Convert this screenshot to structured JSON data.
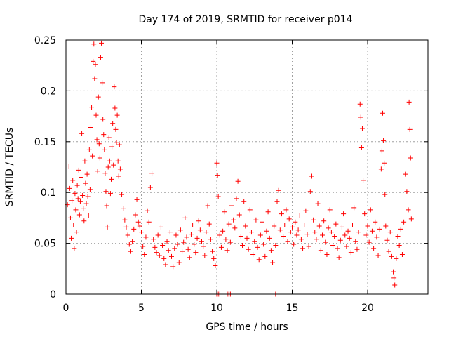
{
  "chart_data": {
    "type": "scatter",
    "title": "Day 174 of 2019, SRMTID for receiver p014",
    "xlabel": "GPS time / hours",
    "ylabel": "SRMTID / TECUs",
    "xlim": [
      0,
      24
    ],
    "ylim": [
      0,
      0.25
    ],
    "xticks": [
      0,
      5,
      10,
      15,
      20
    ],
    "xtick_labels": [
      "0",
      "5",
      "10",
      "15",
      "20"
    ],
    "yticks": [
      0,
      0.05,
      0.1,
      0.15,
      0.2,
      0.25
    ],
    "ytick_labels": [
      "0",
      "0.05",
      "0.1",
      "0.15",
      "0.2",
      "0.25"
    ],
    "grid": true,
    "marker": "+",
    "color": "#ff0000",
    "series": [
      {
        "name": "SRMTID",
        "points": [
          [
            0.1,
            0.088
          ],
          [
            0.2,
            0.126
          ],
          [
            0.25,
            0.104
          ],
          [
            0.3,
            0.075
          ],
          [
            0.35,
            0.055
          ],
          [
            0.4,
            0.092
          ],
          [
            0.45,
            0.112
          ],
          [
            0.5,
            0.068
          ],
          [
            0.55,
            0.045
          ],
          [
            0.6,
            0.099
          ],
          [
            0.65,
            0.083
          ],
          [
            0.7,
            0.061
          ],
          [
            0.75,
            0.107
          ],
          [
            0.8,
            0.094
          ],
          [
            0.85,
            0.122
          ],
          [
            0.9,
            0.078
          ],
          [
            0.95,
            0.091
          ],
          [
            1.0,
            0.115
          ],
          [
            1.05,
            0.158
          ],
          [
            1.1,
            0.097
          ],
          [
            1.15,
            0.084
          ],
          [
            1.2,
            0.072
          ],
          [
            1.25,
            0.131
          ],
          [
            1.3,
            0.109
          ],
          [
            1.35,
            0.089
          ],
          [
            1.4,
            0.118
          ],
          [
            1.45,
            0.096
          ],
          [
            1.5,
            0.077
          ],
          [
            1.55,
            0.142
          ],
          [
            1.6,
            0.103
          ],
          [
            1.65,
            0.164
          ],
          [
            1.7,
            0.184
          ],
          [
            1.75,
            0.136
          ],
          [
            1.8,
            0.229
          ],
          [
            1.85,
            0.246
          ],
          [
            1.9,
            0.212
          ],
          [
            1.95,
            0.226
          ],
          [
            2.0,
            0.176
          ],
          [
            2.05,
            0.152
          ],
          [
            2.1,
            0.121
          ],
          [
            2.15,
            0.194
          ],
          [
            2.2,
            0.148
          ],
          [
            2.25,
            0.134
          ],
          [
            2.3,
            0.233
          ],
          [
            2.35,
            0.247
          ],
          [
            2.4,
            0.208
          ],
          [
            2.45,
            0.172
          ],
          [
            2.5,
            0.157
          ],
          [
            2.55,
            0.142
          ],
          [
            2.6,
            0.119
          ],
          [
            2.65,
            0.101
          ],
          [
            2.7,
            0.087
          ],
          [
            2.75,
            0.066
          ],
          [
            2.8,
            0.125
          ],
          [
            2.85,
            0.154
          ],
          [
            2.9,
            0.131
          ],
          [
            2.95,
            0.099
          ],
          [
            3.0,
            0.113
          ],
          [
            3.05,
            0.145
          ],
          [
            3.1,
            0.168
          ],
          [
            3.15,
            0.127
          ],
          [
            3.2,
            0.204
          ],
          [
            3.25,
            0.183
          ],
          [
            3.3,
            0.162
          ],
          [
            3.35,
            0.149
          ],
          [
            3.4,
            0.176
          ],
          [
            3.45,
            0.131
          ],
          [
            3.5,
            0.116
          ],
          [
            3.55,
            0.147
          ],
          [
            3.6,
            0.123
          ],
          [
            3.7,
            0.098
          ],
          [
            3.8,
            0.084
          ],
          [
            3.9,
            0.073
          ],
          [
            4.0,
            0.066
          ],
          [
            4.1,
            0.058
          ],
          [
            4.2,
            0.049
          ],
          [
            4.3,
            0.042
          ],
          [
            4.4,
            0.052
          ],
          [
            4.5,
            0.064
          ],
          [
            4.6,
            0.078
          ],
          [
            4.7,
            0.093
          ],
          [
            4.8,
            0.071
          ],
          [
            4.9,
            0.067
          ],
          [
            5.0,
            0.061
          ],
          [
            5.1,
            0.047
          ],
          [
            5.2,
            0.039
          ],
          [
            5.3,
            0.056
          ],
          [
            5.4,
            0.082
          ],
          [
            5.5,
            0.071
          ],
          [
            5.6,
            0.105
          ],
          [
            5.7,
            0.119
          ],
          [
            5.8,
            0.054
          ],
          [
            5.9,
            0.046
          ],
          [
            6.0,
            0.041
          ],
          [
            6.1,
            0.058
          ],
          [
            6.2,
            0.038
          ],
          [
            6.3,
            0.066
          ],
          [
            6.4,
            0.048
          ],
          [
            6.5,
            0.035
          ],
          [
            6.6,
            0.029
          ],
          [
            6.7,
            0.052
          ],
          [
            6.8,
            0.043
          ],
          [
            6.9,
            0.061
          ],
          [
            7.0,
            0.037
          ],
          [
            7.1,
            0.027
          ],
          [
            7.2,
            0.045
          ],
          [
            7.3,
            0.058
          ],
          [
            7.4,
            0.049
          ],
          [
            7.5,
            0.031
          ],
          [
            7.6,
            0.063
          ],
          [
            7.7,
            0.042
          ],
          [
            7.8,
            0.051
          ],
          [
            7.9,
            0.075
          ],
          [
            8.0,
            0.056
          ],
          [
            8.1,
            0.044
          ],
          [
            8.2,
            0.036
          ],
          [
            8.3,
            0.059
          ],
          [
            8.4,
            0.068
          ],
          [
            8.5,
            0.049
          ],
          [
            8.6,
            0.041
          ],
          [
            8.7,
            0.055
          ],
          [
            8.8,
            0.072
          ],
          [
            8.9,
            0.063
          ],
          [
            9.0,
            0.052
          ],
          [
            9.1,
            0.047
          ],
          [
            9.2,
            0.038
          ],
          [
            9.3,
            0.061
          ],
          [
            9.4,
            0.087
          ],
          [
            9.5,
            0.069
          ],
          [
            9.6,
            0.054
          ],
          [
            9.7,
            0.042
          ],
          [
            9.8,
            0.035
          ],
          [
            9.9,
            0.028
          ],
          [
            10.0,
            0.129
          ],
          [
            10.05,
            0.117
          ],
          [
            10.1,
            0.096
          ],
          [
            10.2,
            0.058
          ],
          [
            10.3,
            0.046
          ],
          [
            10.4,
            0.062
          ],
          [
            10.5,
            0.081
          ],
          [
            10.6,
            0.054
          ],
          [
            10.7,
            0.043
          ],
          [
            10.8,
            0.069
          ],
          [
            10.9,
            0.051
          ],
          [
            11.0,
            0.087
          ],
          [
            11.1,
            0.073
          ],
          [
            11.2,
            0.065
          ],
          [
            11.3,
            0.094
          ],
          [
            11.4,
            0.111
          ],
          [
            11.5,
            0.078
          ],
          [
            11.6,
            0.057
          ],
          [
            11.7,
            0.048
          ],
          [
            11.8,
            0.091
          ],
          [
            11.9,
            0.067
          ],
          [
            12.0,
            0.055
          ],
          [
            12.1,
            0.044
          ],
          [
            12.2,
            0.083
          ],
          [
            12.3,
            0.061
          ],
          [
            12.4,
            0.039
          ],
          [
            12.5,
            0.052
          ],
          [
            12.6,
            0.073
          ],
          [
            12.7,
            0.046
          ],
          [
            12.8,
            0.034
          ],
          [
            12.9,
            0.058
          ],
          [
            13.0,
            0.071
          ],
          [
            13.1,
            0.049
          ],
          [
            13.2,
            0.037
          ],
          [
            13.3,
            0.062
          ],
          [
            13.4,
            0.081
          ],
          [
            13.5,
            0.055
          ],
          [
            13.6,
            0.043
          ],
          [
            13.7,
            0.031
          ],
          [
            13.8,
            0.067
          ],
          [
            13.9,
            0.048
          ],
          [
            14.0,
            0.091
          ],
          [
            14.1,
            0.102
          ],
          [
            14.2,
            0.063
          ],
          [
            14.3,
            0.079
          ],
          [
            14.4,
            0.057
          ],
          [
            14.5,
            0.068
          ],
          [
            14.6,
            0.083
          ],
          [
            14.7,
            0.052
          ],
          [
            14.8,
            0.074
          ],
          [
            14.9,
            0.061
          ],
          [
            15.0,
            0.066
          ],
          [
            15.1,
            0.049
          ],
          [
            15.2,
            0.071
          ],
          [
            15.3,
            0.058
          ],
          [
            15.4,
            0.063
          ],
          [
            15.5,
            0.077
          ],
          [
            15.6,
            0.054
          ],
          [
            15.7,
            0.045
          ],
          [
            15.8,
            0.068
          ],
          [
            15.9,
            0.082
          ],
          [
            16.0,
            0.059
          ],
          [
            16.1,
            0.047
          ],
          [
            16.2,
            0.101
          ],
          [
            16.3,
            0.116
          ],
          [
            16.4,
            0.073
          ],
          [
            16.5,
            0.061
          ],
          [
            16.6,
            0.054
          ],
          [
            16.7,
            0.089
          ],
          [
            16.8,
            0.067
          ],
          [
            16.9,
            0.043
          ],
          [
            17.0,
            0.058
          ],
          [
            17.1,
            0.072
          ],
          [
            17.2,
            0.051
          ],
          [
            17.3,
            0.039
          ],
          [
            17.4,
            0.065
          ],
          [
            17.5,
            0.083
          ],
          [
            17.6,
            0.061
          ],
          [
            17.7,
            0.048
          ],
          [
            17.8,
            0.057
          ],
          [
            17.9,
            0.069
          ],
          [
            18.0,
            0.045
          ],
          [
            18.1,
            0.036
          ],
          [
            18.2,
            0.053
          ],
          [
            18.3,
            0.066
          ],
          [
            18.4,
            0.079
          ],
          [
            18.5,
            0.058
          ],
          [
            18.6,
            0.047
          ],
          [
            18.7,
            0.062
          ],
          [
            18.8,
            0.055
          ],
          [
            18.9,
            0.041
          ],
          [
            19.0,
            0.068
          ],
          [
            19.1,
            0.085
          ],
          [
            19.2,
            0.052
          ],
          [
            19.3,
            0.044
          ],
          [
            19.4,
            0.061
          ],
          [
            19.5,
            0.187
          ],
          [
            19.55,
            0.174
          ],
          [
            19.6,
            0.144
          ],
          [
            19.65,
            0.163
          ],
          [
            19.7,
            0.112
          ],
          [
            19.8,
            0.079
          ],
          [
            19.9,
            0.058
          ],
          [
            20.0,
            0.067
          ],
          [
            20.1,
            0.051
          ],
          [
            20.2,
            0.083
          ],
          [
            20.3,
            0.062
          ],
          [
            20.4,
            0.045
          ],
          [
            20.5,
            0.071
          ],
          [
            20.6,
            0.056
          ],
          [
            20.7,
            0.038
          ],
          [
            20.8,
            0.064
          ],
          [
            20.9,
            0.123
          ],
          [
            20.95,
            0.141
          ],
          [
            21.0,
            0.178
          ],
          [
            21.05,
            0.151
          ],
          [
            21.1,
            0.129
          ],
          [
            21.15,
            0.098
          ],
          [
            21.2,
            0.067
          ],
          [
            21.3,
            0.053
          ],
          [
            21.4,
            0.042
          ],
          [
            21.5,
            0.061
          ],
          [
            21.6,
            0.037
          ],
          [
            21.7,
            0.022
          ],
          [
            21.75,
            0.016
          ],
          [
            21.8,
            0.009
          ],
          [
            21.9,
            0.035
          ],
          [
            22.0,
            0.057
          ],
          [
            22.1,
            0.048
          ],
          [
            22.2,
            0.064
          ],
          [
            22.3,
            0.039
          ],
          [
            22.4,
            0.071
          ],
          [
            22.5,
            0.118
          ],
          [
            22.6,
            0.101
          ],
          [
            22.7,
            0.083
          ],
          [
            22.75,
            0.189
          ],
          [
            22.8,
            0.162
          ],
          [
            22.85,
            0.134
          ],
          [
            22.9,
            0.074
          ],
          [
            10.0,
            0.0
          ],
          [
            10.1,
            0.0
          ],
          [
            10.2,
            0.0
          ],
          [
            10.7,
            0.0
          ],
          [
            10.8,
            0.0
          ],
          [
            10.9,
            0.0
          ],
          [
            11.0,
            0.0
          ],
          [
            13.0,
            0.0
          ],
          [
            13.9,
            0.0
          ]
        ]
      }
    ]
  }
}
